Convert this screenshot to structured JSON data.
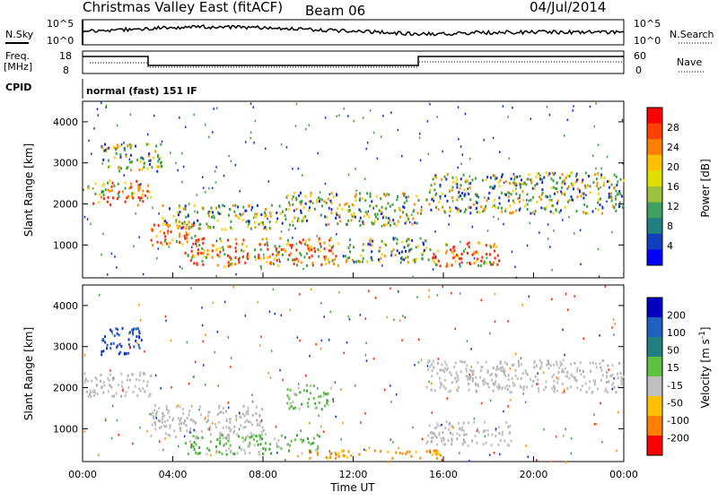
{
  "header": {
    "title": "Christmas Valley East (fitACF)",
    "beam": "Beam 06",
    "date": "04/Jul/2014"
  },
  "top_strips": {
    "nsky_label": "N.Sky",
    "nsearch_label": "N.Search",
    "noise_ticks": [
      "10^5",
      "10^0"
    ],
    "freq_label_line1": "Freq.",
    "freq_label_line2": "[MHz]",
    "freq_ticks": [
      "18",
      "8"
    ],
    "nave_ticks": [
      "60",
      "0"
    ],
    "nave_label": "Nave",
    "cpid_label": "CPID",
    "cpid_text": "normal (fast) 151 IF"
  },
  "colors": {
    "scatter_red": "#ff2000",
    "scatter_orange": "#ff8c00",
    "scatter_yellow": "#ffd000",
    "scatter_green": "#3ea03e",
    "scatter_blue": "#1030c8",
    "ground_gray": "#c0c0c0"
  },
  "chart_data": [
    {
      "type": "heatmap",
      "panel": "power",
      "ylabel": "Slant Range [km]",
      "ylim": [
        200,
        4500
      ],
      "yticks": [
        1000,
        2000,
        3000,
        4000
      ],
      "xlim": [
        0,
        24
      ],
      "colorbar_label": "Power [dB]",
      "colorbar_ticks": [
        "28",
        "24",
        "20",
        "16",
        "12",
        "8",
        "4"
      ],
      "colorbar_colors": [
        "#ff0000",
        "#ff4000",
        "#ff8000",
        "#ffc000",
        "#e0e000",
        "#a0c040",
        "#40a060",
        "#208080",
        "#1040c0",
        "#0000ff"
      ],
      "bands": [
        {
          "t": [
            0.2,
            3.0
          ],
          "range": [
            2000,
            2600
          ],
          "level": "high"
        },
        {
          "t": [
            0.8,
            3.5
          ],
          "range": [
            2800,
            3500
          ],
          "level": "mid"
        },
        {
          "t": [
            3.0,
            5.0
          ],
          "range": [
            1000,
            1600
          ],
          "level": "high"
        },
        {
          "t": [
            4.5,
            11.5
          ],
          "range": [
            500,
            1200
          ],
          "level": "high"
        },
        {
          "t": [
            3.5,
            9.0
          ],
          "range": [
            1400,
            2000
          ],
          "level": "mid"
        },
        {
          "t": [
            9.0,
            15.0
          ],
          "range": [
            1500,
            2300
          ],
          "level": "mid"
        },
        {
          "t": [
            11.5,
            15.2
          ],
          "range": [
            600,
            1200
          ],
          "level": "mid"
        },
        {
          "t": [
            15.2,
            18.5
          ],
          "range": [
            500,
            1100
          ],
          "level": "high"
        },
        {
          "t": [
            15.2,
            24.0
          ],
          "range": [
            1800,
            2800
          ],
          "level": "mid"
        }
      ]
    },
    {
      "type": "heatmap",
      "panel": "velocity",
      "ylabel": "Slant Range [km]",
      "ylim": [
        200,
        4500
      ],
      "yticks": [
        1000,
        2000,
        3000,
        4000
      ],
      "xlim": [
        0,
        24
      ],
      "xticks": [
        "00:00",
        "04:00",
        "08:00",
        "12:00",
        "16:00",
        "20:00",
        "00:00"
      ],
      "xlabel": "Time UT",
      "colorbar_label": "Velocity [m s^-1]",
      "colorbar_ticks": [
        "200",
        "100",
        "50",
        "15",
        "-15",
        "-50",
        "-100",
        "-200"
      ],
      "colorbar_colors": [
        "#0000c0",
        "#2060c0",
        "#208080",
        "#60c040",
        "#c0c0c0",
        "#ffc000",
        "#ff8000",
        "#ff0000"
      ],
      "bands": [
        {
          "t": [
            0.8,
            2.6
          ],
          "range": [
            2800,
            3500
          ],
          "level": "blue"
        },
        {
          "t": [
            0.0,
            3.0
          ],
          "range": [
            1800,
            2400
          ],
          "level": "gray"
        },
        {
          "t": [
            3.0,
            8.0
          ],
          "range": [
            800,
            1600
          ],
          "level": "gray"
        },
        {
          "t": [
            4.5,
            10.5
          ],
          "range": [
            400,
            900
          ],
          "level": "green"
        },
        {
          "t": [
            9.0,
            11.0
          ],
          "range": [
            1500,
            2100
          ],
          "level": "green"
        },
        {
          "t": [
            10.0,
            16.0
          ],
          "range": [
            300,
            500
          ],
          "level": "orange"
        },
        {
          "t": [
            15.2,
            24.0
          ],
          "range": [
            1900,
            2700
          ],
          "level": "gray"
        },
        {
          "t": [
            15.2,
            19.0
          ],
          "range": [
            600,
            1200
          ],
          "level": "gray"
        }
      ]
    }
  ]
}
